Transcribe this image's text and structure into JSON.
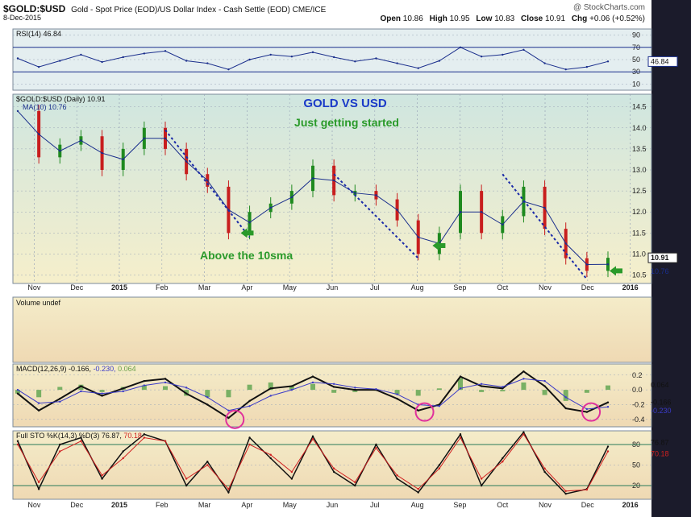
{
  "header": {
    "symbol": "$GOLD:$USD",
    "description": "Gold - Spot Price (EOD)/US Dollar Index - Cash Settle (EOD)  CME/ICE",
    "date": "8-Dec-2015",
    "watermark": "@ StockCharts.com",
    "open_label": "Open",
    "open": "10.86",
    "high_label": "High",
    "high": "10.95",
    "low_label": "Low",
    "low": "10.83",
    "close_label": "Close",
    "close": "10.91",
    "chg_label": "Chg",
    "chg": "+0.06 (+0.52%)"
  },
  "colors": {
    "background": "#1b1b2b",
    "up": "#1f8a1f",
    "down": "#c81e1e",
    "ma": "#1a2e8c",
    "trend": "#1a2aa8",
    "annotation": "#2a9a2a",
    "title": "#1a3ac8",
    "circle": "#e0309c"
  },
  "chart_data": [
    {
      "type": "line",
      "name": "rsi-panel",
      "label": "RSI(14) 46.84",
      "current": "46.84",
      "ylim": [
        0,
        100
      ],
      "y_ticks": [
        "90",
        "70",
        "50",
        "30",
        "10"
      ],
      "x": [
        "Oct 15",
        "Nov 1",
        "Nov 15",
        "Dec 1",
        "Dec 15",
        "Jan 1",
        "Jan 15",
        "Feb 1",
        "Feb 15",
        "Mar 1",
        "Mar 15",
        "Apr 1",
        "Apr 15",
        "May 1",
        "May 15",
        "Jun 1",
        "Jun 15",
        "Jul 1",
        "Jul 15",
        "Aug 1",
        "Aug 15",
        "Sep 1",
        "Sep 15",
        "Oct 1",
        "Oct 15",
        "Nov 1",
        "Nov 15",
        "Dec 1",
        "Dec 8"
      ],
      "values": [
        52,
        38,
        48,
        58,
        46,
        54,
        60,
        64,
        48,
        44,
        34,
        50,
        58,
        55,
        62,
        54,
        47,
        52,
        44,
        36,
        48,
        70,
        55,
        58,
        66,
        44,
        34,
        38,
        47
      ]
    },
    {
      "type": "line",
      "name": "price-panel",
      "label": "$GOLD:$USD (Daily) 10.91",
      "ma_label": "MA(10) 10.76",
      "title": "GOLD VS USD",
      "subtitle": "Just getting started",
      "annotation": "Above the 10sma",
      "ylim": [
        10.3,
        14.8
      ],
      "y_ticks": [
        "14.5",
        "14.0",
        "13.5",
        "13.0",
        "12.5",
        "12.0",
        "11.5",
        "11.0",
        "10.5"
      ],
      "last_value": "10.91",
      "ma_value": "10.76",
      "x": [
        "Oct 15",
        "Nov 1",
        "Nov 15",
        "Dec 1",
        "Dec 15",
        "Jan 1",
        "Jan 15",
        "Feb 1",
        "Feb 15",
        "Mar 1",
        "Mar 15",
        "Apr 1",
        "Apr 15",
        "May 1",
        "May 15",
        "Jun 1",
        "Jun 15",
        "Jul 1",
        "Jul 15",
        "Aug 1",
        "Aug 15",
        "Sep 1",
        "Sep 15",
        "Oct 1",
        "Oct 15",
        "Nov 1",
        "Nov 15",
        "Dec 1",
        "Dec 8"
      ],
      "values": [
        14.4,
        13.3,
        13.6,
        13.8,
        13.0,
        13.5,
        14.0,
        13.5,
        12.9,
        12.6,
        11.5,
        12.0,
        12.2,
        12.5,
        13.1,
        12.4,
        12.5,
        12.3,
        11.8,
        11.0,
        11.5,
        12.5,
        11.5,
        11.9,
        12.6,
        11.6,
        10.9,
        10.6,
        10.91
      ]
    },
    {
      "type": "bar",
      "name": "volume-panel",
      "label": "Volume undef"
    },
    {
      "type": "line",
      "name": "macd-panel",
      "label": "MACD(12,26,9) -0.166, -0.230, 0.064",
      "macd_label": "MACD(12,26,9)",
      "macd_value": "-0.166",
      "signal_value": "-0.230",
      "hist_value": "0.064",
      "ylim": [
        -0.5,
        0.35
      ],
      "y_ticks": [
        "0.2",
        "0.0",
        "-0.2",
        "-0.4"
      ],
      "x": [
        "Oct 15",
        "Nov 1",
        "Nov 15",
        "Dec 1",
        "Dec 15",
        "Jan 1",
        "Jan 15",
        "Feb 1",
        "Feb 15",
        "Mar 1",
        "Mar 15",
        "Apr 1",
        "Apr 15",
        "May 1",
        "May 15",
        "Jun 1",
        "Jun 15",
        "Jul 1",
        "Jul 15",
        "Aug 1",
        "Aug 15",
        "Sep 1",
        "Sep 15",
        "Oct 1",
        "Oct 15",
        "Nov 1",
        "Nov 15",
        "Dec 1",
        "Dec 8"
      ],
      "macd": [
        -0.05,
        -0.28,
        -0.12,
        0.05,
        -0.08,
        0.02,
        0.12,
        0.15,
        -0.05,
        -0.2,
        -0.38,
        -0.15,
        0.02,
        0.05,
        0.18,
        0.04,
        0.0,
        0.0,
        -0.12,
        -0.28,
        -0.2,
        0.18,
        0.05,
        0.02,
        0.25,
        0.05,
        -0.25,
        -0.3,
        -0.17
      ],
      "signal": [
        0.0,
        -0.18,
        -0.16,
        -0.02,
        -0.05,
        -0.02,
        0.06,
        0.1,
        0.03,
        -0.1,
        -0.28,
        -0.22,
        -0.08,
        0.0,
        0.1,
        0.08,
        0.03,
        0.01,
        -0.06,
        -0.2,
        -0.22,
        0.02,
        0.08,
        0.04,
        0.15,
        0.12,
        -0.1,
        -0.26,
        -0.23
      ]
    },
    {
      "type": "line",
      "name": "sto-panel",
      "label": "Full STO %K(14,3) %D(3) 76.87, 70.18",
      "k_label": "Full STO %K(14,3) %D(3)",
      "k_value": "76.87",
      "d_value": "70.18",
      "ylim": [
        0,
        100
      ],
      "y_ticks": [
        "80",
        "50",
        "20"
      ],
      "x": [
        "Oct 15",
        "Nov 1",
        "Nov 15",
        "Dec 1",
        "Dec 15",
        "Jan 1",
        "Jan 15",
        "Feb 1",
        "Feb 15",
        "Mar 1",
        "Mar 15",
        "Apr 1",
        "Apr 15",
        "May 1",
        "May 15",
        "Jun 1",
        "Jun 15",
        "Jul 1",
        "Jul 15",
        "Aug 1",
        "Aug 15",
        "Sep 1",
        "Sep 15",
        "Oct 1",
        "Oct 15",
        "Nov 1",
        "Nov 15",
        "Dec 1",
        "Dec 8"
      ],
      "k": [
        85,
        15,
        80,
        90,
        30,
        70,
        95,
        85,
        20,
        55,
        10,
        90,
        60,
        30,
        92,
        40,
        20,
        80,
        30,
        10,
        50,
        95,
        20,
        60,
        98,
        40,
        8,
        15,
        77
      ],
      "d": [
        80,
        25,
        70,
        85,
        35,
        60,
        90,
        85,
        30,
        50,
        15,
        80,
        65,
        40,
        88,
        45,
        25,
        75,
        35,
        15,
        45,
        90,
        30,
        55,
        95,
        45,
        12,
        14,
        70
      ]
    }
  ],
  "x_axis": {
    "labels": [
      "Nov",
      "Dec",
      "2015",
      "Feb",
      "Mar",
      "Apr",
      "May",
      "Jun",
      "Jul",
      "Aug",
      "Sep",
      "Oct",
      "Nov",
      "Dec",
      "2016"
    ],
    "positions": [
      0.5,
      1.5,
      2.5,
      3.5,
      4.5,
      5.5,
      6.5,
      7.5,
      8.5,
      9.5,
      10.5,
      11.5,
      12.5,
      13.5,
      14.5
    ]
  }
}
